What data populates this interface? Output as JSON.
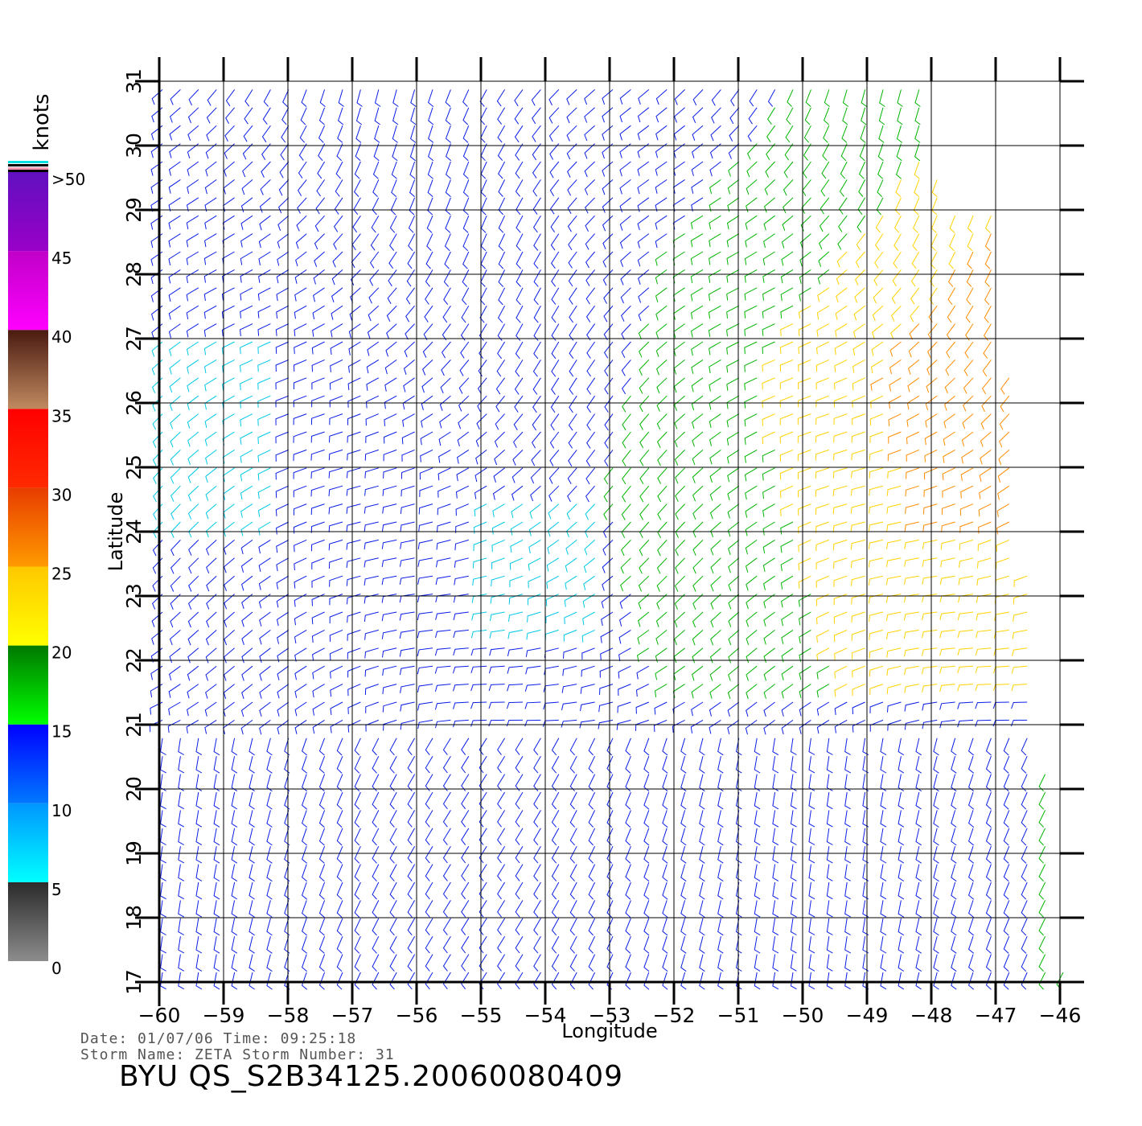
{
  "colorbar": {
    "unit_label": "knots",
    "tick_labels": [
      ">50",
      "45",
      "40",
      "35",
      "30",
      "25",
      "20",
      "15",
      "10",
      "5",
      "0"
    ],
    "segments": [
      {
        "from": 0,
        "to": 5,
        "top": "#2a2a2a",
        "bottom": "#8c8c8c"
      },
      {
        "from": 5,
        "to": 10,
        "top": "#0096ff",
        "bottom": "#00ffff"
      },
      {
        "from": 10,
        "to": 15,
        "top": "#0000ff",
        "bottom": "#0078ff"
      },
      {
        "from": 15,
        "to": 20,
        "top": "#007800",
        "bottom": "#00ff00"
      },
      {
        "from": 20,
        "to": 25,
        "top": "#ffc800",
        "bottom": "#ffff00"
      },
      {
        "from": 25,
        "to": 30,
        "top": "#e83c00",
        "bottom": "#ff9a00"
      },
      {
        "from": 30,
        "to": 35,
        "top": "#ff0000",
        "bottom": "#ff2a00"
      },
      {
        "from": 35,
        "to": 40,
        "top": "#4a1a10",
        "bottom": "#c08a60"
      },
      {
        "from": 40,
        "to": 45,
        "top": "#c000c8",
        "bottom": "#ff00ff"
      },
      {
        "from": 45,
        "to": 50,
        "top": "#6010c0",
        "bottom": "#9a00c8"
      }
    ]
  },
  "map": {
    "lon_range": [
      -60,
      -46
    ],
    "lat_range": [
      17,
      31
    ],
    "lon_ticks": [
      -60,
      -59,
      -58,
      -57,
      -56,
      -55,
      -54,
      -53,
      -52,
      -51,
      -50,
      -49,
      -48,
      -47,
      -46
    ],
    "lat_ticks": [
      17,
      18,
      19,
      20,
      21,
      22,
      23,
      24,
      25,
      26,
      27,
      28,
      29,
      30,
      31
    ],
    "xlabel": "Longitude",
    "ylabel": "Latitude",
    "field_description_colors": {
      "light_winds": "#00c8e6",
      "moderate_winds": "#0a1ee6",
      "fresh_winds": "#00b400",
      "strong_winds": "#ffd200",
      "gale_winds": "#ff8c00"
    }
  },
  "footer": {
    "date_line": "Date: 01/07/06   Time: 09:25:18",
    "storm_line": "Storm Name: ZETA   Storm Number: 31",
    "title": "BYU QS_S2B34125.20060080409"
  }
}
